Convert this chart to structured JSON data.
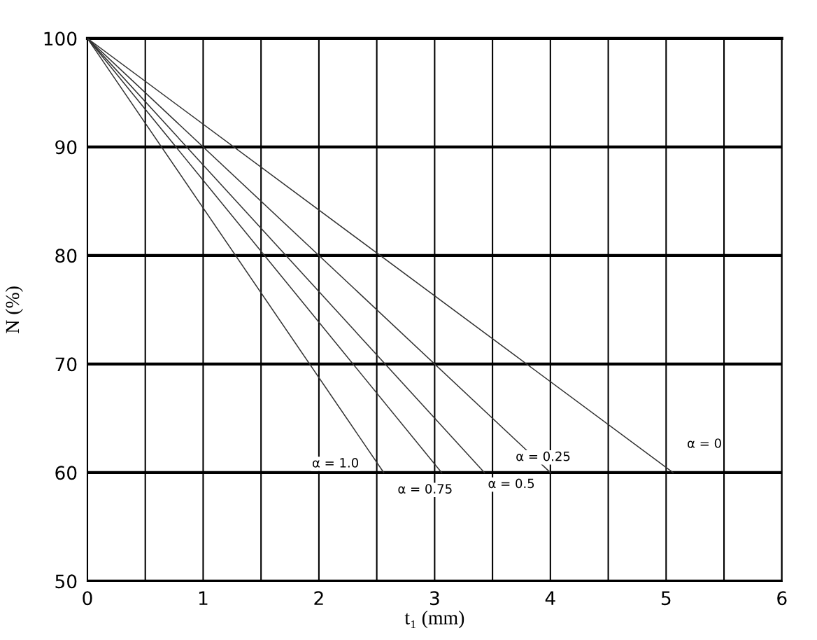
{
  "chart_data": {
    "type": "line",
    "xlabel": "t₁ (mm)",
    "ylabel": "N (%)",
    "series": [
      {
        "name": "α = 1.0",
        "color": "#333333",
        "x": [
          0,
          2.56
        ],
        "values": [
          100,
          60
        ]
      },
      {
        "name": "α = 0.75",
        "color": "#333333",
        "x": [
          0,
          3.06
        ],
        "values": [
          100,
          60
        ]
      },
      {
        "name": "α = 0.5",
        "color": "#333333",
        "x": [
          0,
          3.43
        ],
        "values": [
          100,
          60
        ]
      },
      {
        "name": "α = 0.25",
        "color": "#333333",
        "x": [
          0,
          4.0
        ],
        "values": [
          100,
          60
        ]
      },
      {
        "name": "α = 0",
        "color": "#333333",
        "x": [
          0,
          5.06
        ],
        "values": [
          100,
          60
        ]
      }
    ],
    "xlim": [
      0,
      6
    ],
    "ylim": [
      50,
      100
    ],
    "xticks": [
      0,
      {
        "value": 0.5,
        "label": null
      },
      1,
      {
        "value": 1.5,
        "label": null
      },
      2,
      {
        "value": 2.5,
        "label": null
      },
      3,
      {
        "value": 3.5,
        "label": null
      },
      4,
      {
        "value": 4.5,
        "label": null
      },
      5,
      {
        "value": 5.5,
        "label": null
      },
      6
    ],
    "yticks": [
      50,
      60,
      70,
      80,
      90,
      100
    ],
    "grid": true,
    "marker": "none",
    "line_style": "solid"
  }
}
